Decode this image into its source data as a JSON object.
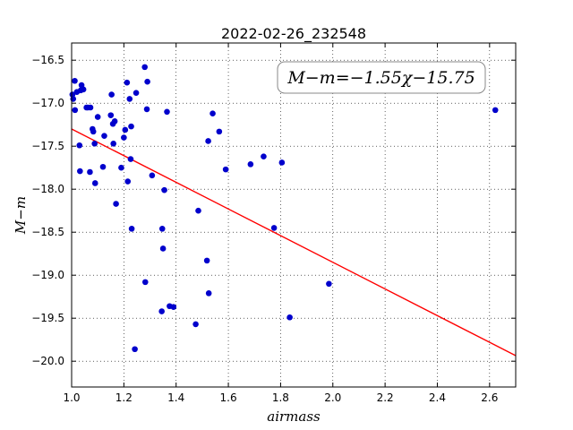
{
  "chart_data": {
    "type": "scatter",
    "title": "2022-02-26_232548",
    "xlabel": "airmass",
    "ylabel": "M−m",
    "xlim": [
      1.0,
      2.7
    ],
    "ylim": [
      -20.3,
      -16.3
    ],
    "x_ticks": [
      1.0,
      1.2,
      1.4,
      1.6,
      1.8,
      2.0,
      2.2,
      2.4,
      2.6
    ],
    "x_tick_labels": [
      "1.0",
      "1.2",
      "1.4",
      "1.6",
      "1.8",
      "2.0",
      "2.2",
      "2.4",
      "2.6"
    ],
    "y_ticks": [
      -16.5,
      -17.0,
      -17.5,
      -18.0,
      -18.5,
      -19.0,
      -19.5,
      -20.0
    ],
    "y_tick_labels": [
      "−16.5",
      "−17.0",
      "−17.5",
      "−18.0",
      "−18.5",
      "−19.0",
      "−19.5",
      "−20.0"
    ],
    "grid": true,
    "annotation": "M−m=−1.55χ−15.75",
    "annotation_position": "top-right",
    "fit": {
      "slope": -1.55,
      "intercept": -15.75,
      "color": "#ff0000"
    },
    "point_color": "#0000cc",
    "points": [
      [
        1.003,
        -16.9
      ],
      [
        1.006,
        -16.95
      ],
      [
        1.012,
        -16.74
      ],
      [
        1.013,
        -17.08
      ],
      [
        1.02,
        -16.87
      ],
      [
        1.03,
        -17.49
      ],
      [
        1.032,
        -17.79
      ],
      [
        1.035,
        -16.85
      ],
      [
        1.038,
        -16.79
      ],
      [
        1.045,
        -16.84
      ],
      [
        1.057,
        -17.05
      ],
      [
        1.062,
        -17.05
      ],
      [
        1.07,
        -17.8
      ],
      [
        1.072,
        -17.05
      ],
      [
        1.08,
        -17.3
      ],
      [
        1.083,
        -17.33
      ],
      [
        1.088,
        -17.47
      ],
      [
        1.09,
        -17.93
      ],
      [
        1.1,
        -17.16
      ],
      [
        1.12,
        -17.74
      ],
      [
        1.125,
        -17.38
      ],
      [
        1.15,
        -17.14
      ],
      [
        1.153,
        -16.9
      ],
      [
        1.158,
        -17.24
      ],
      [
        1.16,
        -17.47
      ],
      [
        1.165,
        -17.21
      ],
      [
        1.17,
        -18.17
      ],
      [
        1.19,
        -17.75
      ],
      [
        1.2,
        -17.4
      ],
      [
        1.205,
        -17.31
      ],
      [
        1.212,
        -16.76
      ],
      [
        1.215,
        -17.91
      ],
      [
        1.222,
        -16.95
      ],
      [
        1.226,
        -17.65
      ],
      [
        1.228,
        -17.27
      ],
      [
        1.23,
        -18.46
      ],
      [
        1.242,
        -19.86
      ],
      [
        1.247,
        -16.88
      ],
      [
        1.28,
        -16.58
      ],
      [
        1.282,
        -19.08
      ],
      [
        1.288,
        -17.07
      ],
      [
        1.29,
        -16.75
      ],
      [
        1.308,
        -17.84
      ],
      [
        1.345,
        -19.42
      ],
      [
        1.347,
        -18.46
      ],
      [
        1.35,
        -18.69
      ],
      [
        1.355,
        -18.01
      ],
      [
        1.365,
        -17.1
      ],
      [
        1.375,
        -19.36
      ],
      [
        1.39,
        -19.37
      ],
      [
        1.475,
        -19.57
      ],
      [
        1.485,
        -18.25
      ],
      [
        1.518,
        -18.83
      ],
      [
        1.523,
        -17.44
      ],
      [
        1.525,
        -19.21
      ],
      [
        1.54,
        -17.12
      ],
      [
        1.565,
        -17.33
      ],
      [
        1.59,
        -17.77
      ],
      [
        1.685,
        -17.71
      ],
      [
        1.735,
        -17.62
      ],
      [
        1.775,
        -18.45
      ],
      [
        1.805,
        -17.69
      ],
      [
        1.835,
        -19.49
      ],
      [
        1.985,
        -19.1
      ],
      [
        2.622,
        -17.08
      ]
    ]
  }
}
